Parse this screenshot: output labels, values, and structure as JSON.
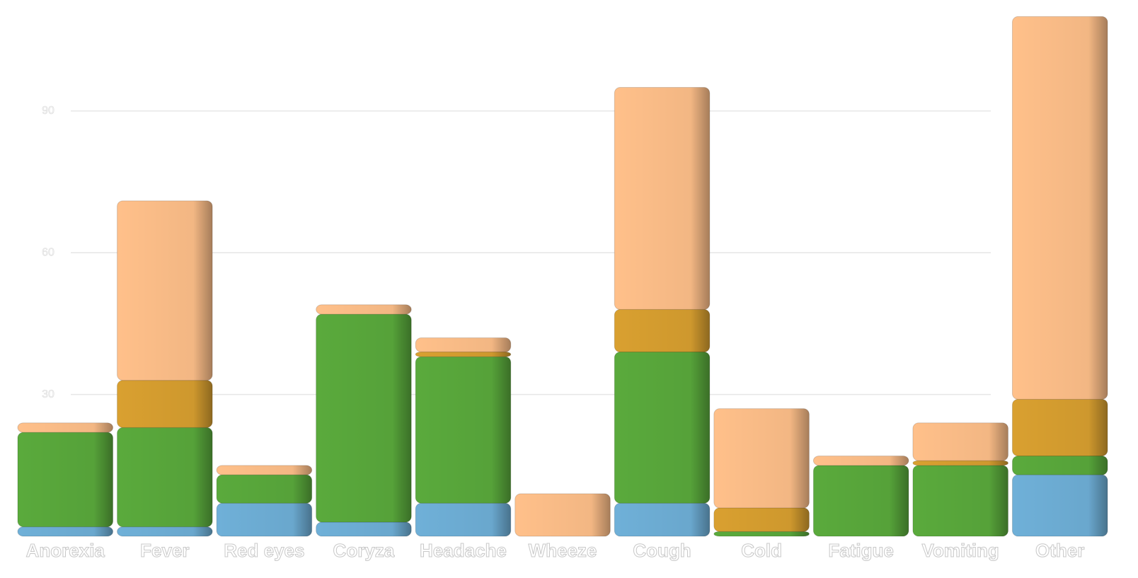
{
  "chart_data": {
    "type": "bar",
    "stacked": true,
    "categories": [
      "Anorexia",
      "Fever",
      "Red eyes",
      "Coryza",
      "Headache",
      "Wheeze",
      "Cough",
      "Cold",
      "Fatigue",
      "Vomiting",
      "Other"
    ],
    "series": [
      {
        "color": "#6fb0d8",
        "values": [
          2,
          2,
          7,
          3,
          7,
          0,
          7,
          0,
          0,
          0,
          13
        ]
      },
      {
        "color": "#5aaa3c",
        "values": [
          20,
          21,
          6,
          44,
          31,
          0,
          32,
          1,
          15,
          15,
          4
        ]
      },
      {
        "color": "#d9a030",
        "values": [
          0,
          10,
          0,
          0,
          1,
          0,
          9,
          5,
          0,
          1,
          12
        ]
      },
      {
        "color": "#ffc08a",
        "values": [
          2,
          38,
          2,
          2,
          3,
          9,
          47,
          21,
          2,
          8,
          81
        ]
      }
    ],
    "ylim": [
      0,
      112
    ],
    "yticks": [
      30,
      60,
      90
    ],
    "grid": true
  }
}
